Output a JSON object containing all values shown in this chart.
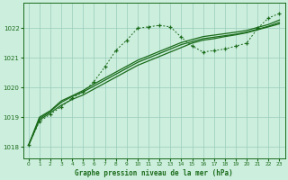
{
  "title": "Graphe pression niveau de la mer (hPa)",
  "background_color": "#cceedd",
  "plot_bg_color": "#cceedd",
  "grid_color": "#99ccbb",
  "line_color": "#1a6b1a",
  "xlim": [
    -0.5,
    23.5
  ],
  "ylim": [
    1017.6,
    1022.85
  ],
  "yticks": [
    1018,
    1019,
    1020,
    1021,
    1022
  ],
  "xticks": [
    0,
    1,
    2,
    3,
    4,
    5,
    6,
    7,
    8,
    9,
    10,
    11,
    12,
    13,
    14,
    15,
    16,
    17,
    18,
    19,
    20,
    21,
    22,
    23
  ],
  "series1_x": [
    0,
    1,
    2,
    3,
    4,
    5,
    6,
    7,
    8,
    9,
    10,
    11,
    12,
    13,
    14,
    15,
    16,
    17,
    18,
    19,
    20,
    21,
    22,
    23
  ],
  "series1_y": [
    1018.05,
    1018.85,
    1019.1,
    1019.35,
    1019.65,
    1019.85,
    1020.2,
    1020.7,
    1021.25,
    1021.6,
    1022.0,
    1022.05,
    1022.1,
    1022.05,
    1021.7,
    1021.4,
    1021.2,
    1021.25,
    1021.3,
    1021.4,
    1021.5,
    1022.0,
    1022.35,
    1022.5
  ],
  "series2_x": [
    0,
    1,
    2,
    3,
    4,
    5,
    6,
    7,
    8,
    9,
    10,
    11,
    12,
    13,
    14,
    15,
    16,
    17,
    18,
    19,
    20,
    21,
    22,
    23
  ],
  "series2_y": [
    1018.05,
    1018.9,
    1019.15,
    1019.4,
    1019.6,
    1019.75,
    1019.95,
    1020.15,
    1020.35,
    1020.55,
    1020.75,
    1020.9,
    1021.05,
    1021.2,
    1021.35,
    1021.5,
    1021.6,
    1021.65,
    1021.72,
    1021.78,
    1021.85,
    1021.95,
    1022.05,
    1022.15
  ],
  "series3_x": [
    0,
    1,
    2,
    3,
    4,
    5,
    6,
    7,
    8,
    9,
    10,
    11,
    12,
    13,
    14,
    15,
    16,
    17,
    18,
    19,
    20,
    21,
    22,
    23
  ],
  "series3_y": [
    1018.05,
    1018.95,
    1019.2,
    1019.5,
    1019.7,
    1019.85,
    1020.05,
    1020.25,
    1020.45,
    1020.65,
    1020.85,
    1021.0,
    1021.15,
    1021.3,
    1021.45,
    1021.55,
    1021.65,
    1021.7,
    1021.75,
    1021.8,
    1021.87,
    1021.97,
    1022.07,
    1022.2
  ],
  "series4_x": [
    0,
    1,
    2,
    3,
    4,
    5,
    6,
    7,
    8,
    9,
    10,
    11,
    12,
    13,
    14,
    15,
    16,
    17,
    18,
    19,
    20,
    21,
    22,
    23
  ],
  "series4_y": [
    1018.05,
    1019.0,
    1019.22,
    1019.55,
    1019.72,
    1019.9,
    1020.12,
    1020.32,
    1020.52,
    1020.72,
    1020.92,
    1021.07,
    1021.22,
    1021.37,
    1021.52,
    1021.62,
    1021.72,
    1021.77,
    1021.82,
    1021.87,
    1021.93,
    1022.03,
    1022.13,
    1022.28
  ]
}
